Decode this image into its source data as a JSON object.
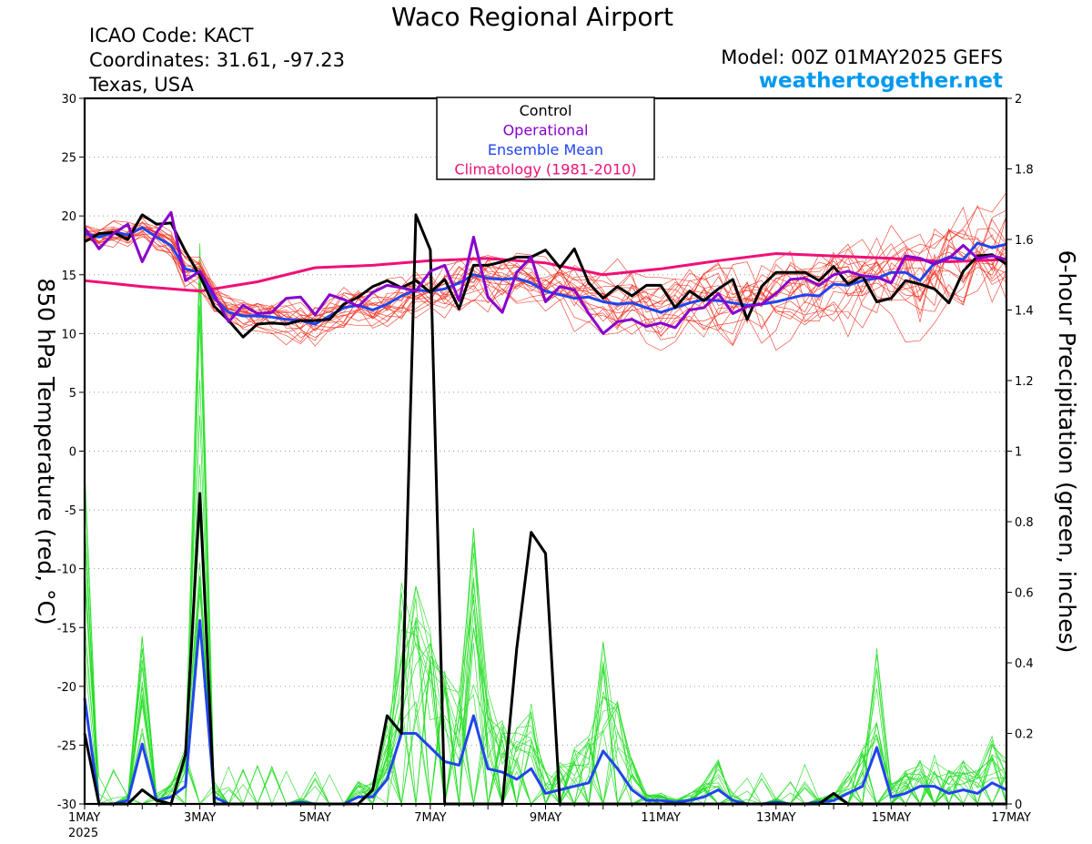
{
  "header": {
    "title": "Waco Regional Airport",
    "icao": "ICAO Code: KACT",
    "coordinates": "Coordinates: 31.61, -97.23",
    "region": "Texas, USA",
    "model": "Model: 00Z 01MAY2025 GEFS",
    "site": "weathertogether.net"
  },
  "chart_data": {
    "type": "line",
    "x_unit": "days since 00Z 1MAY2025",
    "xlim": [
      0,
      16
    ],
    "x_ticks": [
      {
        "x": 0,
        "label": "1MAY",
        "sub": "2025"
      },
      {
        "x": 2,
        "label": "3MAY"
      },
      {
        "x": 4,
        "label": "5MAY"
      },
      {
        "x": 6,
        "label": "7MAY"
      },
      {
        "x": 8,
        "label": "9MAY"
      },
      {
        "x": 10,
        "label": "11MAY"
      },
      {
        "x": 12,
        "label": "13MAY"
      },
      {
        "x": 14,
        "label": "15MAY"
      },
      {
        "x": 16,
        "label": "17MAY"
      }
    ],
    "left_axis": {
      "label": "850 hPa Temperature (red, °C)",
      "ylim": [
        -30,
        30
      ],
      "ticks": [
        30,
        25,
        20,
        15,
        10,
        5,
        0,
        -5,
        -10,
        -15,
        -20,
        -25,
        -30
      ]
    },
    "right_axis": {
      "label": "6-hour Precipitation (green, inches)",
      "ylim": [
        0,
        2
      ],
      "ticks": [
        "2",
        "1.8",
        "1.6",
        "1.4",
        "1.2",
        "1",
        "0.8",
        "0.6",
        "0.4",
        "0.2",
        "0"
      ]
    },
    "grid": "horizontal dotted",
    "legend": {
      "position": "top-center",
      "items": [
        {
          "label": "Control",
          "color": "#000000"
        },
        {
          "label": "Operational",
          "color": "#8800cc"
        },
        {
          "label": "Ensemble Mean",
          "color": "#2244ee"
        },
        {
          "label": "Climatology (1981-2010)",
          "color": "#ee1177"
        }
      ]
    },
    "colors": {
      "members_temp": "#ee3322",
      "members_precip": "#22dd22",
      "control": "#000000",
      "operational": "#8800cc",
      "mean": "#2244ee",
      "climatology": "#ee1177"
    },
    "series": [
      {
        "name": "Climatology (1981-2010)",
        "axis": "left",
        "x": [
          0,
          1,
          2,
          3,
          4,
          5,
          6,
          7,
          8,
          9,
          10,
          11,
          12,
          13,
          14,
          15,
          16
        ],
        "y": [
          14.5,
          14.0,
          13.6,
          14.4,
          15.6,
          15.8,
          16.2,
          16.4,
          16.0,
          15.0,
          15.5,
          16.2,
          16.8,
          16.6,
          16.4,
          16.1,
          16.3
        ]
      },
      {
        "name": "Ensemble Mean",
        "axis": "left",
        "x": [
          0,
          0.25,
          0.5,
          0.75,
          1,
          1.25,
          1.5,
          1.75,
          2,
          2.25,
          2.5,
          2.75,
          3,
          3.25,
          3.5,
          3.75,
          4,
          4.25,
          4.5,
          4.75,
          5,
          5.25,
          5.5,
          5.75,
          6,
          6.25,
          6.5,
          6.75,
          7,
          7.25,
          7.5,
          7.75,
          8,
          8.25,
          8.5,
          8.75,
          9,
          9.25,
          9.5,
          9.75,
          10,
          10.25,
          10.5,
          10.75,
          11,
          11.25,
          11.5,
          11.75,
          12,
          12.25,
          12.5,
          12.75,
          13,
          13.25,
          13.5,
          13.75,
          14,
          14.25,
          14.5,
          14.75,
          15,
          15.25,
          15.5,
          15.75,
          16
        ],
        "y": [
          18.5,
          18.2,
          18.6,
          18.4,
          19.0,
          18.2,
          17.5,
          15.5,
          15.2,
          13.0,
          11.8,
          11.5,
          11.5,
          11.4,
          11.2,
          11.1,
          10.8,
          11.5,
          12.2,
          12.4,
          12.0,
          12.5,
          13.2,
          13.7,
          13.6,
          13.8,
          14.3,
          15.0,
          14.7,
          14.6,
          14.7,
          14.3,
          13.6,
          13.3,
          13.0,
          13.1,
          12.7,
          12.5,
          12.6,
          12.2,
          11.8,
          12.2,
          12.6,
          12.9,
          12.8,
          12.6,
          12.4,
          12.5,
          12.7,
          13.0,
          13.3,
          13.2,
          14.2,
          14.1,
          14.5,
          14.7,
          15.2,
          15.2,
          14.5,
          16.0,
          16.5,
          16.3,
          17.7,
          17.3,
          17.6
        ]
      },
      {
        "name": "Precip Ensemble Mean",
        "axis": "right",
        "x": [
          0,
          0.25,
          0.5,
          0.75,
          1,
          1.25,
          1.5,
          1.75,
          2,
          2.25,
          2.5,
          2.75,
          3,
          3.25,
          3.5,
          3.75,
          4,
          4.25,
          4.5,
          4.75,
          5,
          5.25,
          5.5,
          5.75,
          6,
          6.25,
          6.5,
          6.75,
          7,
          7.25,
          7.5,
          7.75,
          8,
          8.25,
          8.5,
          8.75,
          9,
          9.25,
          9.5,
          9.75,
          10,
          10.25,
          10.5,
          10.75,
          11,
          11.25,
          11.5,
          11.75,
          12,
          12.25,
          12.5,
          12.75,
          13,
          13.25,
          13.5,
          13.75,
          14,
          14.25,
          14.5,
          14.75,
          15,
          15.25,
          15.5,
          15.75,
          16
        ],
        "y": [
          0.3,
          0.0,
          0.0,
          0.01,
          0.17,
          0.01,
          0.02,
          0.05,
          0.52,
          0.02,
          0.0,
          0.0,
          0.0,
          0.0,
          0.0,
          0.005,
          0.0,
          0.0,
          0.0,
          0.02,
          0.02,
          0.07,
          0.2,
          0.2,
          0.16,
          0.12,
          0.11,
          0.25,
          0.1,
          0.09,
          0.07,
          0.1,
          0.03,
          0.04,
          0.05,
          0.06,
          0.15,
          0.1,
          0.04,
          0.01,
          0.01,
          0.005,
          0.01,
          0.02,
          0.04,
          0.01,
          0.0,
          0.0,
          0.005,
          0.0,
          0.0,
          0.005,
          0.01,
          0.03,
          0.05,
          0.16,
          0.02,
          0.03,
          0.05,
          0.05,
          0.03,
          0.04,
          0.03,
          0.06,
          0.04
        ]
      },
      {
        "name": "Control",
        "axis": "left",
        "x": [
          0,
          0.25,
          0.5,
          0.75,
          1,
          1.25,
          1.5,
          1.75,
          2,
          2.25,
          2.5,
          2.75,
          3,
          3.25,
          3.5,
          3.75,
          4,
          4.25,
          4.5,
          4.75,
          5,
          5.25,
          5.5,
          5.75,
          6,
          6.25,
          6.5,
          6.75,
          7,
          7.25,
          7.5,
          7.75,
          8,
          8.25,
          8.5,
          8.75,
          9,
          9.25,
          9.5,
          9.75,
          10,
          10.25,
          10.5,
          10.75,
          11,
          11.25,
          11.5,
          11.75,
          12,
          12.25,
          12.5,
          12.75,
          13,
          13.25,
          13.5,
          13.75,
          14,
          14.25,
          14.5,
          14.75,
          15,
          15.25,
          15.5,
          15.75,
          16
        ],
        "y": [
          17.8,
          18.5,
          18.6,
          18.0,
          20.1,
          19.3,
          19.4,
          17.0,
          14.9,
          12.3,
          11.1,
          9.7,
          10.8,
          10.9,
          10.8,
          11.1,
          11.1,
          11.2,
          12.5,
          13.1,
          14.0,
          14.5,
          13.9,
          14.5,
          13.5,
          14.6,
          12.1,
          15.8,
          15.8,
          16.1,
          16.5,
          16.5,
          17.1,
          15.6,
          17.2,
          14.3,
          13.0,
          14.0,
          13.2,
          14.1,
          14.1,
          12.2,
          13.6,
          12.8,
          13.8,
          14.6,
          11.2,
          14.0,
          15.2,
          15.2,
          15.2,
          14.5,
          15.7,
          14.2,
          14.9,
          12.7,
          13.0,
          14.5,
          14.2,
          13.8,
          12.6,
          15.3,
          16.6,
          16.7,
          15.9
        ]
      },
      {
        "name": "Precip Control",
        "axis": "right",
        "x": [
          0,
          0.25,
          0.5,
          0.75,
          1,
          1.25,
          1.5,
          1.75,
          2,
          2.25,
          2.5,
          2.75,
          3,
          3.25,
          3.5,
          3.75,
          4,
          4.25,
          4.5,
          4.75,
          5,
          5.25,
          5.5,
          5.75,
          6,
          6.25,
          6.5,
          6.75,
          7,
          7.25,
          7.5,
          7.75,
          8,
          8.25,
          8.5,
          8.75,
          9,
          9.25,
          9.5,
          9.75,
          10,
          10.25,
          10.5,
          10.75,
          11,
          11.25,
          11.5,
          11.75,
          12,
          12.25,
          12.5,
          12.75,
          13,
          13.25,
          13.5,
          13.75,
          14,
          14.25,
          14.5,
          14.75,
          15,
          15.25,
          15.5,
          15.75,
          16
        ],
        "y": [
          0.2,
          0.0,
          0.0,
          0.0,
          0.04,
          0.01,
          0.0,
          0.14,
          0.88,
          0.0,
          0.0,
          0.0,
          0.0,
          0.0,
          0.0,
          0.0,
          0.0,
          0.0,
          0.0,
          0.0,
          0.04,
          0.25,
          0.2,
          1.67,
          1.57,
          0.0,
          0.0,
          0.0,
          0.0,
          0.0,
          0.44,
          0.77,
          0.71,
          0.0,
          0.0,
          0.0,
          0.0,
          0.0,
          0.0,
          0.0,
          0.0,
          0.0,
          0.0,
          0.0,
          0.0,
          0.0,
          0.0,
          0.0,
          0.0,
          0.0,
          0.0,
          0.0,
          0.03,
          0.0,
          0.0,
          0.0,
          0.0,
          0.0,
          0.0,
          0.0,
          0.0,
          0.0,
          0.0,
          0.0,
          0.0
        ]
      },
      {
        "name": "Operational",
        "axis": "left",
        "x": [
          0,
          0.25,
          0.5,
          0.75,
          1,
          1.25,
          1.5,
          1.75,
          2,
          2.25,
          2.5,
          2.75,
          3,
          3.25,
          3.5,
          3.75,
          4,
          4.25,
          4.5,
          4.75,
          5,
          5.25,
          5.5,
          5.75,
          6,
          6.25,
          6.5,
          6.75,
          7,
          7.25,
          7.5,
          7.75,
          8,
          8.25,
          8.5,
          8.75,
          9,
          9.25,
          9.5,
          9.75,
          10,
          10.25,
          10.5,
          10.75,
          11,
          11.25,
          11.5,
          11.75,
          12,
          12.25,
          12.5,
          12.75,
          13,
          13.25,
          13.5,
          13.75,
          14,
          14.25,
          14.5,
          14.75,
          15,
          15.25,
          15.5,
          15.75,
          16
        ],
        "y": [
          19.0,
          17.2,
          18.5,
          19.3,
          16.1,
          18.6,
          20.3,
          14.5,
          15.3,
          13.3,
          11.0,
          12.4,
          11.7,
          11.8,
          13.0,
          13.1,
          11.6,
          13.3,
          12.9,
          12.3,
          13.5,
          14.1,
          13.9,
          13.6,
          15.3,
          15.8,
          12.8,
          18.2,
          13.1,
          11.8,
          15.2,
          16.5,
          12.7,
          14.0,
          13.7,
          11.7,
          10.0,
          11.0,
          11.2,
          10.6,
          10.9,
          10.5,
          12.0,
          12.2,
          13.4,
          11.7,
          12.3,
          12.5,
          13.4,
          14.6,
          14.7,
          14.1,
          15.0,
          15.3,
          14.9,
          14.8,
          14.3,
          16.6,
          16.4,
          15.9,
          16.4,
          17.5,
          16.4,
          16.6,
          16.3
        ]
      }
    ]
  }
}
